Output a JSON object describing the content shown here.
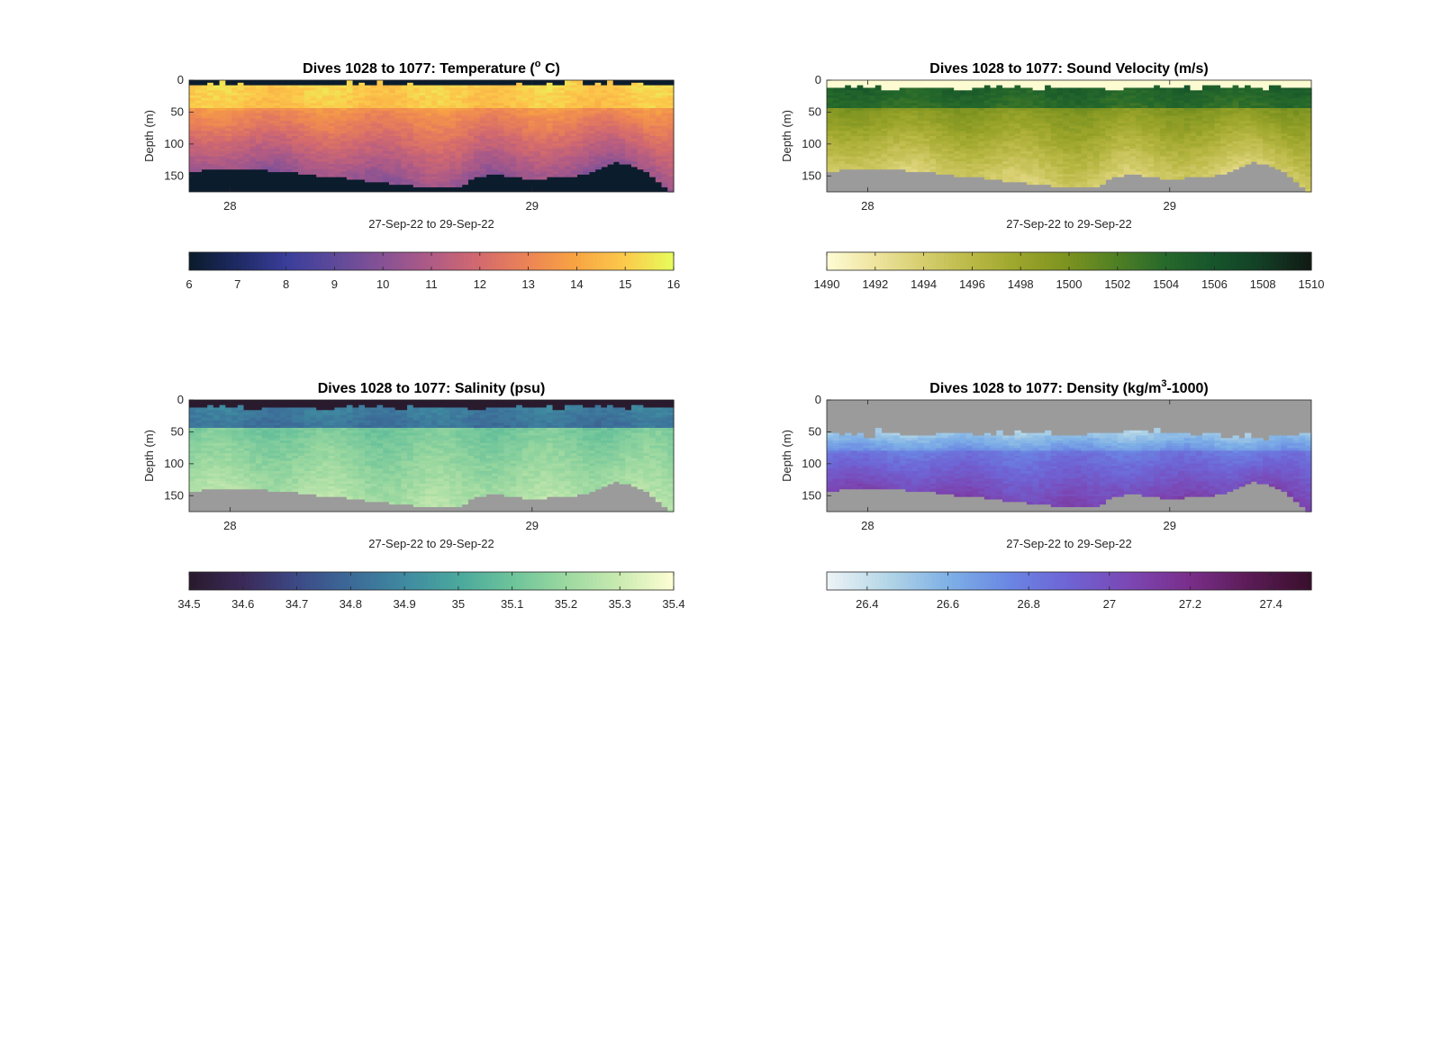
{
  "figure": {
    "background": "#ffffff",
    "land_color": "#9b9b9b"
  },
  "chart_data": [
    {
      "type": "heatmap",
      "variable": "temperature",
      "title": "Dives 1028 to 1077: Temperature (",
      "title_sup": "o",
      "title_end": " C)",
      "xlabel": "27-Sep-22 to 29-Sep-22",
      "ylabel": "Depth (m)",
      "xticks": [
        "28",
        "29"
      ],
      "xlim": [
        "2022-09-27 20:45",
        "2022-09-29 11:15"
      ],
      "xtick_dates": [
        "2022-09-28",
        "2022-09-29"
      ],
      "ylim": [
        175,
        0
      ],
      "yticks": [
        0,
        50,
        100,
        150
      ],
      "colorbar": {
        "range": [
          6,
          16
        ],
        "ticks": [
          "6",
          "7",
          "8",
          "9",
          "10",
          "11",
          "12",
          "13",
          "14",
          "15",
          "16"
        ],
        "colors": [
          "#0b1c2d",
          "#1f2a66",
          "#3a3e9a",
          "#5e4a9a",
          "#875295",
          "#b05b85",
          "#d36a6e",
          "#ec8455",
          "#f8a443",
          "#fcc94b",
          "#e8fa5b"
        ]
      },
      "bottom_fill": "#0b1c2d",
      "surface_value": 6,
      "upper_layer": [
        0,
        45,
        15.2,
        14.8
      ],
      "lower_layer": [
        45,
        175,
        13.5,
        10.3
      ],
      "seafloor_depth_m": [
        143,
        140,
        140,
        140,
        141,
        143,
        148,
        150,
        153,
        157,
        160,
        163,
        166,
        168,
        166,
        150,
        148,
        152,
        155,
        151,
        150,
        142,
        128,
        132,
        148,
        175
      ],
      "surface_gap_m": [
        6,
        7,
        6,
        7,
        6,
        8,
        6,
        7,
        6,
        7,
        6,
        7,
        6,
        8,
        6,
        7,
        6,
        7,
        6,
        7,
        6,
        8,
        6,
        7,
        6,
        7
      ]
    },
    {
      "type": "heatmap",
      "variable": "sound_velocity",
      "title": "Dives 1028 to 1077: Sound Velocity (m/s)",
      "title_sup": "",
      "title_end": "",
      "xlabel": "27-Sep-22 to 29-Sep-22",
      "ylabel": "Depth (m)",
      "xticks": [
        "28",
        "29"
      ],
      "xlim": [
        "2022-09-27 20:45",
        "2022-09-29 11:15"
      ],
      "xtick_dates": [
        "2022-09-28",
        "2022-09-29"
      ],
      "ylim": [
        175,
        0
      ],
      "yticks": [
        0,
        50,
        100,
        150
      ],
      "colorbar": {
        "range": [
          1490,
          1510
        ],
        "ticks": [
          "1490",
          "1492",
          "1494",
          "1496",
          "1498",
          "1500",
          "1502",
          "1504",
          "1506",
          "1508",
          "1510"
        ],
        "colors": [
          "#fdfbd2",
          "#eee39c",
          "#d5cd6d",
          "#b9b845",
          "#9aa42a",
          "#7b9220",
          "#4f7f24",
          "#26692b",
          "#16552b",
          "#123f25",
          "#111b14"
        ]
      },
      "bottom_fill": "#9b9b9b",
      "surface_value": 1490,
      "upper_layer": [
        0,
        45,
        1505.3,
        1503.5
      ],
      "lower_layer": [
        45,
        175,
        1499.5,
        1494.0
      ],
      "seafloor_depth_m": [
        143,
        140,
        140,
        140,
        141,
        143,
        148,
        150,
        153,
        157,
        160,
        163,
        166,
        168,
        166,
        150,
        148,
        152,
        155,
        151,
        150,
        142,
        128,
        132,
        148,
        175
      ],
      "surface_gap_m": [
        12,
        13,
        12,
        14,
        12,
        13,
        12,
        14,
        12,
        13,
        12,
        14,
        12,
        13,
        12,
        14,
        12,
        13,
        12,
        14,
        12,
        13,
        12,
        14,
        12,
        13
      ]
    },
    {
      "type": "heatmap",
      "variable": "salinity",
      "title": "Dives 1028 to 1077: Salinity (psu)",
      "title_sup": "",
      "title_end": "",
      "xlabel": "27-Sep-22 to 29-Sep-22",
      "ylabel": "Depth (m)",
      "xticks": [
        "28",
        "29"
      ],
      "xlim": [
        "2022-09-27 20:45",
        "2022-09-29 11:15"
      ],
      "xtick_dates": [
        "2022-09-28",
        "2022-09-29"
      ],
      "ylim": [
        175,
        0
      ],
      "yticks": [
        0,
        50,
        100,
        150
      ],
      "colorbar": {
        "range": [
          34.5,
          35.4
        ],
        "ticks": [
          "34.5",
          "34.6",
          "34.7",
          "34.8",
          "34.9",
          "35",
          "35.1",
          "35.2",
          "35.3",
          "35.4"
        ],
        "colors": [
          "#2a1a2e",
          "#3b2a5a",
          "#3c4a86",
          "#3c6a98",
          "#3f8aa0",
          "#4aa89d",
          "#6cc39a",
          "#9bd8a0",
          "#c9eab0",
          "#fdfdd3"
        ]
      },
      "bottom_fill": "#9b9b9b",
      "surface_value": 34.5,
      "upper_layer": [
        0,
        45,
        34.88,
        34.82
      ],
      "lower_layer": [
        45,
        175,
        35.12,
        35.24
      ],
      "seafloor_depth_m": [
        143,
        140,
        140,
        140,
        141,
        143,
        148,
        150,
        153,
        157,
        160,
        163,
        166,
        168,
        166,
        150,
        148,
        152,
        155,
        151,
        150,
        142,
        128,
        132,
        148,
        175
      ],
      "surface_gap_m": [
        12,
        13,
        12,
        14,
        12,
        13,
        12,
        14,
        12,
        13,
        12,
        14,
        12,
        13,
        12,
        14,
        12,
        13,
        12,
        14,
        12,
        13,
        12,
        14,
        12,
        13
      ]
    },
    {
      "type": "heatmap",
      "variable": "density",
      "title": "Dives 1028 to 1077: Density (kg/m",
      "title_sup": "3",
      "title_end": "-1000)",
      "xlabel": "27-Sep-22 to 29-Sep-22",
      "ylabel": "Depth (m)",
      "xticks": [
        "28",
        "29"
      ],
      "xlim": [
        "2022-09-27 20:45",
        "2022-09-29 11:15"
      ],
      "xtick_dates": [
        "2022-09-28",
        "2022-09-29"
      ],
      "ylim": [
        175,
        0
      ],
      "yticks": [
        0,
        50,
        100,
        150
      ],
      "colorbar": {
        "range": [
          26.3,
          27.5
        ],
        "ticks": [
          "26.4",
          "26.6",
          "26.8",
          "27",
          "27.2",
          "27.4"
        ],
        "colors": [
          "#ecf3f5",
          "#b2d5e6",
          "#7eb0e6",
          "#6a86e3",
          "#6f63d4",
          "#7b47b4",
          "#7a2e8a",
          "#5a1c56",
          "#3a0f2c"
        ]
      },
      "bottom_fill": "#9b9b9b",
      "surface_value": 26.3,
      "upper_layer": [
        45,
        80,
        26.45,
        26.7
      ],
      "lower_layer": [
        80,
        175,
        26.8,
        27.05
      ],
      "seafloor_depth_m": [
        143,
        140,
        140,
        140,
        141,
        143,
        148,
        150,
        153,
        157,
        160,
        163,
        166,
        168,
        166,
        150,
        148,
        152,
        155,
        151,
        150,
        142,
        128,
        132,
        148,
        175
      ],
      "surface_gap_m": [
        52,
        55,
        58,
        50,
        54,
        56,
        52,
        53,
        55,
        54,
        52,
        53,
        54,
        55,
        52,
        50,
        48,
        50,
        52,
        55,
        58,
        60,
        58,
        62,
        56,
        50
      ]
    }
  ]
}
